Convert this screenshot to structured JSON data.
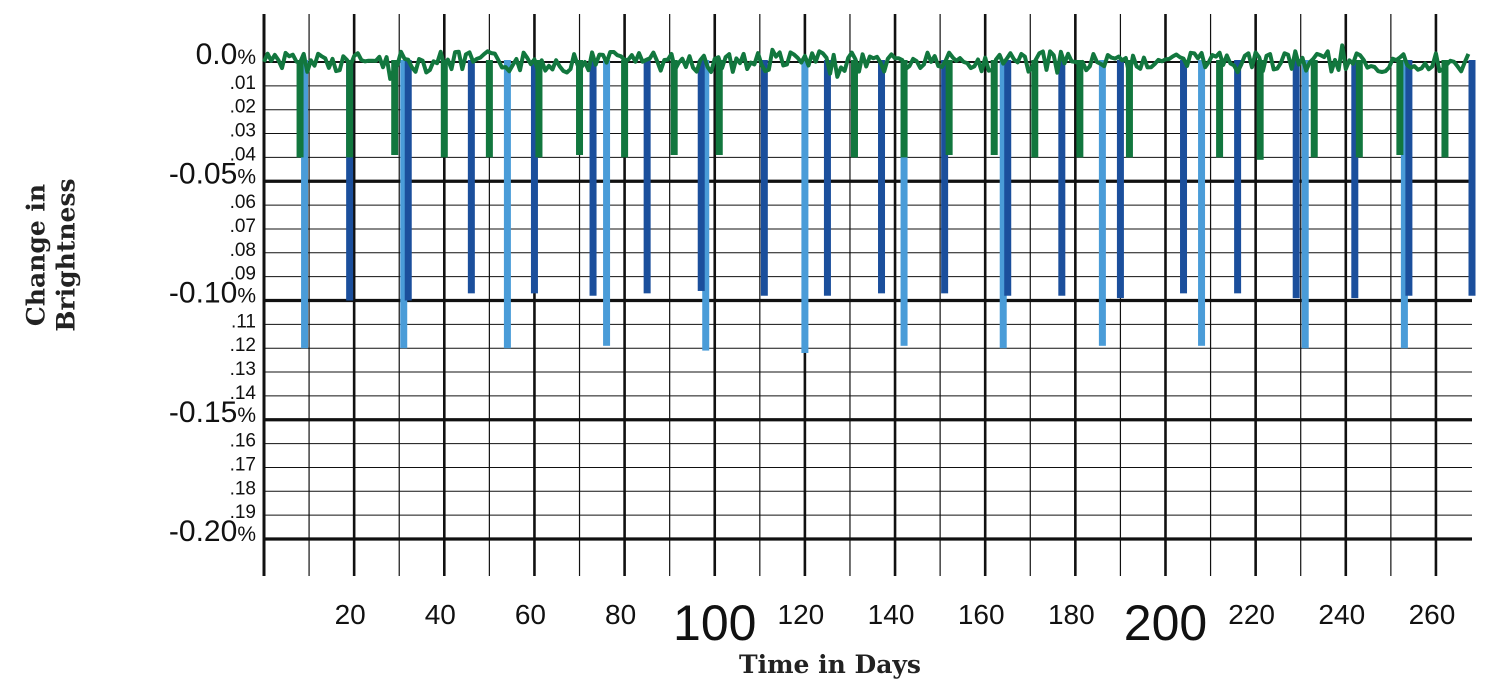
{
  "chart_data": {
    "type": "bar",
    "xlabel": "Time in Days",
    "ylabel_lines": [
      "Change in",
      "Brightness"
    ],
    "xlim": [
      0,
      268
    ],
    "ylim": [
      -0.23,
      0.02
    ],
    "x_ticks": [
      {
        "value": 20,
        "label": "20",
        "big": false
      },
      {
        "value": 40,
        "label": "40",
        "big": false
      },
      {
        "value": 60,
        "label": "60",
        "big": false
      },
      {
        "value": 80,
        "label": "80",
        "big": false
      },
      {
        "value": 100,
        "label": "100",
        "big": true
      },
      {
        "value": 120,
        "label": "120",
        "big": false
      },
      {
        "value": 140,
        "label": "140",
        "big": false
      },
      {
        "value": 160,
        "label": "160",
        "big": false
      },
      {
        "value": 180,
        "label": "180",
        "big": false
      },
      {
        "value": 200,
        "label": "200",
        "big": true
      },
      {
        "value": 220,
        "label": "220",
        "big": false
      },
      {
        "value": 240,
        "label": "240",
        "big": false
      },
      {
        "value": 260,
        "label": "260",
        "big": false
      }
    ],
    "y_major": [
      {
        "value": 0.0,
        "label": "0.0",
        "suffix": "%"
      },
      {
        "value": -0.05,
        "label": "-0.05",
        "suffix": "%"
      },
      {
        "value": -0.1,
        "label": "-0.10",
        "suffix": "%"
      },
      {
        "value": -0.15,
        "label": "-0.15",
        "suffix": "%"
      },
      {
        "value": -0.2,
        "label": "-0.20",
        "suffix": "%"
      }
    ],
    "y_minor": [
      {
        "value": -0.01,
        "label": ".01"
      },
      {
        "value": -0.02,
        "label": ".02"
      },
      {
        "value": -0.03,
        "label": ".03"
      },
      {
        "value": -0.04,
        "label": ".04"
      },
      {
        "value": -0.06,
        "label": ".06"
      },
      {
        "value": -0.07,
        "label": ".07"
      },
      {
        "value": -0.08,
        "label": ".08"
      },
      {
        "value": -0.09,
        "label": ".09"
      },
      {
        "value": -0.11,
        "label": ".11"
      },
      {
        "value": -0.12,
        "label": ".12"
      },
      {
        "value": -0.13,
        "label": ".13"
      },
      {
        "value": -0.14,
        "label": ".14"
      },
      {
        "value": -0.16,
        "label": ".16"
      },
      {
        "value": -0.17,
        "label": ".17"
      },
      {
        "value": -0.18,
        "label": ".18"
      },
      {
        "value": -0.19,
        "label": ".19"
      }
    ],
    "series": [
      {
        "color": "#4a9cd8",
        "dips": [
          {
            "x": 9,
            "value": -0.12
          },
          {
            "x": 31,
            "value": -0.12
          },
          {
            "x": 54,
            "value": -0.12
          },
          {
            "x": 76,
            "value": -0.119
          },
          {
            "x": 98,
            "value": -0.121
          },
          {
            "x": 120,
            "value": -0.122
          },
          {
            "x": 142,
            "value": -0.119
          },
          {
            "x": 164,
            "value": -0.12
          },
          {
            "x": 186,
            "value": -0.119
          },
          {
            "x": 208,
            "value": -0.119
          },
          {
            "x": 231,
            "value": -0.12
          },
          {
            "x": 253,
            "value": -0.12
          }
        ]
      },
      {
        "color": "#1b4f9c",
        "dips": [
          {
            "x": 19,
            "value": -0.1
          },
          {
            "x": 32,
            "value": -0.1
          },
          {
            "x": 46,
            "value": -0.097
          },
          {
            "x": 60,
            "value": -0.097
          },
          {
            "x": 73,
            "value": -0.098
          },
          {
            "x": 85,
            "value": -0.097
          },
          {
            "x": 97,
            "value": -0.096
          },
          {
            "x": 111,
            "value": -0.098
          },
          {
            "x": 125,
            "value": -0.098
          },
          {
            "x": 137,
            "value": -0.097
          },
          {
            "x": 151,
            "value": -0.097
          },
          {
            "x": 165,
            "value": -0.098
          },
          {
            "x": 177,
            "value": -0.098
          },
          {
            "x": 190,
            "value": -0.099
          },
          {
            "x": 204,
            "value": -0.097
          },
          {
            "x": 216,
            "value": -0.097
          },
          {
            "x": 229,
            "value": -0.099
          },
          {
            "x": 242,
            "value": -0.099
          },
          {
            "x": 254,
            "value": -0.098
          },
          {
            "x": 268,
            "value": -0.098
          }
        ]
      },
      {
        "color": "#12773e",
        "dips": [
          {
            "x": 8,
            "value": -0.04
          },
          {
            "x": 19,
            "value": -0.04
          },
          {
            "x": 29,
            "value": -0.039
          },
          {
            "x": 40,
            "value": -0.04
          },
          {
            "x": 50,
            "value": -0.04
          },
          {
            "x": 61,
            "value": -0.04
          },
          {
            "x": 70,
            "value": -0.039
          },
          {
            "x": 80,
            "value": -0.04
          },
          {
            "x": 91,
            "value": -0.039
          },
          {
            "x": 101,
            "value": -0.039
          },
          {
            "x": 131,
            "value": -0.04
          },
          {
            "x": 142,
            "value": -0.04
          },
          {
            "x": 152,
            "value": -0.039
          },
          {
            "x": 162,
            "value": -0.039
          },
          {
            "x": 171,
            "value": -0.04
          },
          {
            "x": 181,
            "value": -0.04
          },
          {
            "x": 192,
            "value": -0.04
          },
          {
            "x": 212,
            "value": -0.04
          },
          {
            "x": 221,
            "value": -0.041
          },
          {
            "x": 233,
            "value": -0.04
          },
          {
            "x": 243,
            "value": -0.04
          },
          {
            "x": 252,
            "value": -0.039
          },
          {
            "x": 262,
            "value": -0.04
          }
        ]
      }
    ],
    "baseline_noise": {
      "color": "#12773e",
      "amplitude": 0.005
    },
    "grid": true
  }
}
